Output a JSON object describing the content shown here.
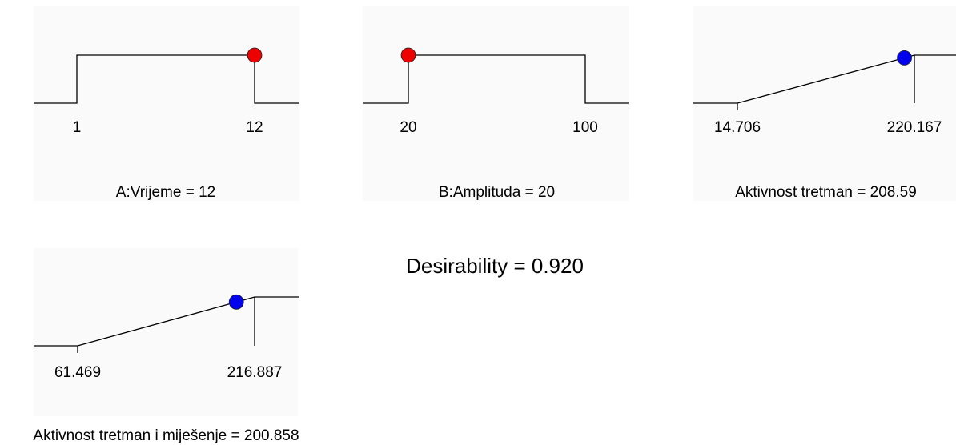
{
  "desirability": {
    "label": "Desirability = 0.920",
    "value": 0.92
  },
  "colors": {
    "panel": "#fafafa",
    "line": "#000000",
    "red": "#ee0000",
    "blue": "#0000ee"
  },
  "chart_data": [
    {
      "type": "line",
      "kind": "maximize-range",
      "title": "A:Vrijeme = 12",
      "tick_labels": [
        "1",
        "12"
      ],
      "low": 1,
      "high": 12,
      "current": 12,
      "point_color": "red"
    },
    {
      "type": "line",
      "kind": "minimize-range",
      "title": "B:Amplituda = 20",
      "tick_labels": [
        "20",
        "100"
      ],
      "low": 20,
      "high": 100,
      "current": 20,
      "point_color": "red"
    },
    {
      "type": "line",
      "kind": "maximize-ramp",
      "title": "Aktivnost tretman = 208.59",
      "tick_labels": [
        "14.706",
        "220.167"
      ],
      "low": 14.706,
      "high": 220.167,
      "current": 208.59,
      "point_color": "blue"
    },
    {
      "type": "line",
      "kind": "maximize-ramp",
      "title": "Aktivnost tretman i miješenje = 200.858",
      "tick_labels": [
        "61.469",
        "216.887"
      ],
      "low": 61.469,
      "high": 216.887,
      "current": 200.858,
      "point_color": "blue"
    }
  ]
}
